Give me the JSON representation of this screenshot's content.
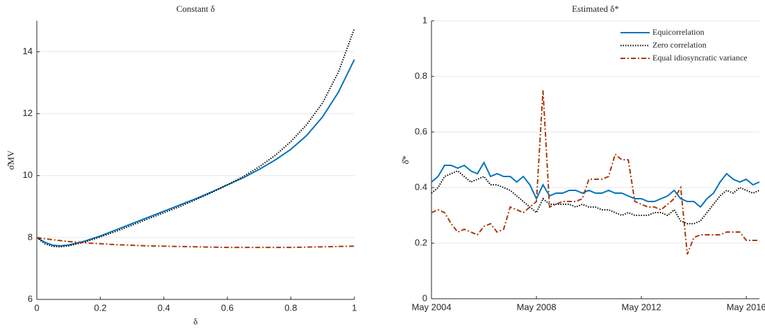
{
  "chart_data": [
    {
      "type": "line",
      "title": "Constant δ",
      "xlabel": "δ",
      "ylabel": "σ̂MV",
      "x": [
        0,
        0.025,
        0.05,
        0.075,
        0.1,
        0.15,
        0.2,
        0.25,
        0.3,
        0.35,
        0.4,
        0.45,
        0.5,
        0.55,
        0.6,
        0.65,
        0.7,
        0.75,
        0.8,
        0.85,
        0.9,
        0.95,
        1
      ],
      "series": [
        {
          "color": "#0072bd",
          "style": "solid",
          "values": [
            8.0,
            7.85,
            7.75,
            7.73,
            7.76,
            7.88,
            8.05,
            8.25,
            8.45,
            8.65,
            8.85,
            9.05,
            9.25,
            9.47,
            9.7,
            9.93,
            10.2,
            10.5,
            10.85,
            11.3,
            11.9,
            12.7,
            13.75
          ]
        },
        {
          "color": "#000000",
          "style": "dotted",
          "values": [
            8.0,
            7.8,
            7.71,
            7.7,
            7.73,
            7.85,
            8.02,
            8.2,
            8.4,
            8.6,
            8.8,
            9.0,
            9.22,
            9.45,
            9.7,
            9.97,
            10.28,
            10.65,
            11.1,
            11.65,
            12.35,
            13.35,
            14.75
          ]
        },
        {
          "color": "#a8380c",
          "style": "dashdot",
          "values": [
            8.0,
            7.96,
            7.93,
            7.9,
            7.87,
            7.83,
            7.8,
            7.77,
            7.75,
            7.73,
            7.72,
            7.71,
            7.7,
            7.69,
            7.68,
            7.68,
            7.68,
            7.68,
            7.68,
            7.69,
            7.7,
            7.71,
            7.72
          ]
        }
      ],
      "xlim": [
        0,
        1
      ],
      "xticks": [
        0,
        0.2,
        0.4,
        0.6,
        0.8,
        1
      ],
      "ylim": [
        6,
        15
      ],
      "yticks": [
        6,
        8,
        10,
        12,
        14
      ],
      "grid": true
    },
    {
      "type": "line",
      "title": "Estimated δ*",
      "ylabel": "δ̂*",
      "x": [
        "2004-05",
        "2004-08",
        "2004-11",
        "2005-02",
        "2005-05",
        "2005-08",
        "2005-11",
        "2006-02",
        "2006-05",
        "2006-08",
        "2006-11",
        "2007-02",
        "2007-05",
        "2007-08",
        "2007-11",
        "2008-02",
        "2008-05",
        "2008-08",
        "2008-11",
        "2009-02",
        "2009-05",
        "2009-08",
        "2009-11",
        "2010-02",
        "2010-05",
        "2010-08",
        "2010-11",
        "2011-02",
        "2011-05",
        "2011-08",
        "2011-11",
        "2012-02",
        "2012-05",
        "2012-08",
        "2012-11",
        "2013-02",
        "2013-05",
        "2013-08",
        "2013-11",
        "2014-02",
        "2014-05",
        "2014-08",
        "2014-11",
        "2015-02",
        "2015-05",
        "2015-08",
        "2015-11",
        "2016-02",
        "2016-05",
        "2016-08",
        "2016-11"
      ],
      "series": [
        {
          "name": "Equicorrelation",
          "color": "#0072bd",
          "style": "solid",
          "values": [
            0.42,
            0.44,
            0.48,
            0.48,
            0.47,
            0.48,
            0.46,
            0.45,
            0.49,
            0.44,
            0.45,
            0.44,
            0.44,
            0.42,
            0.44,
            0.41,
            0.36,
            0.41,
            0.37,
            0.38,
            0.38,
            0.39,
            0.39,
            0.38,
            0.39,
            0.38,
            0.38,
            0.39,
            0.38,
            0.38,
            0.37,
            0.36,
            0.36,
            0.35,
            0.35,
            0.36,
            0.37,
            0.39,
            0.36,
            0.35,
            0.35,
            0.33,
            0.36,
            0.38,
            0.42,
            0.45,
            0.43,
            0.42,
            0.43,
            0.41,
            0.42
          ]
        },
        {
          "name": "Zero correlation",
          "color": "#000000",
          "style": "dotted",
          "values": [
            0.38,
            0.4,
            0.44,
            0.45,
            0.46,
            0.44,
            0.42,
            0.43,
            0.44,
            0.41,
            0.41,
            0.4,
            0.39,
            0.37,
            0.35,
            0.33,
            0.31,
            0.36,
            0.34,
            0.34,
            0.34,
            0.34,
            0.33,
            0.34,
            0.33,
            0.33,
            0.32,
            0.32,
            0.31,
            0.3,
            0.31,
            0.3,
            0.3,
            0.3,
            0.31,
            0.31,
            0.3,
            0.32,
            0.28,
            0.27,
            0.27,
            0.28,
            0.31,
            0.34,
            0.37,
            0.39,
            0.38,
            0.4,
            0.39,
            0.38,
            0.39
          ]
        },
        {
          "name": "Equal idiosyncratic variance",
          "color": "#a8380c",
          "style": "dashdot",
          "values": [
            0.31,
            0.32,
            0.31,
            0.27,
            0.24,
            0.25,
            0.24,
            0.23,
            0.26,
            0.27,
            0.24,
            0.25,
            0.33,
            0.32,
            0.31,
            0.33,
            0.35,
            0.75,
            0.33,
            0.34,
            0.35,
            0.35,
            0.35,
            0.36,
            0.43,
            0.43,
            0.43,
            0.44,
            0.52,
            0.5,
            0.5,
            0.35,
            0.34,
            0.33,
            0.33,
            0.32,
            0.34,
            0.36,
            0.4,
            0.16,
            0.22,
            0.23,
            0.23,
            0.23,
            0.23,
            0.24,
            0.24,
            0.24,
            0.21,
            0.21,
            0.21
          ]
        }
      ],
      "xlim": [
        "2004-05",
        "2016-11"
      ],
      "xticks": [
        {
          "value": "2004-05",
          "label": "May 2004"
        },
        {
          "value": "2008-05",
          "label": "May 2008"
        },
        {
          "value": "2012-05",
          "label": "May 2012"
        },
        {
          "value": "2016-05",
          "label": "May 2016"
        }
      ],
      "ylim": [
        0,
        1
      ],
      "yticks": [
        0,
        0.2,
        0.4,
        0.6,
        0.8,
        1
      ],
      "grid": true,
      "legend": "top-right"
    }
  ]
}
